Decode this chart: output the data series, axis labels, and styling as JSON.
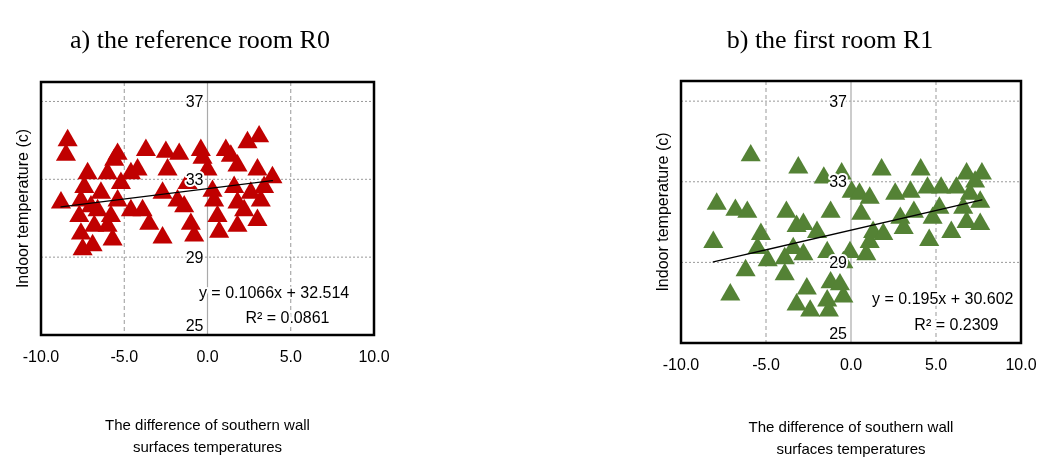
{
  "chart_data": [
    {
      "type": "scatter",
      "title": "a) the reference room R0",
      "xlabel": "The difference of southern wall surfaces temperatures",
      "ylabel": "Indoor temperature (c)",
      "xlim": [
        -10,
        10
      ],
      "ylim": [
        25,
        38
      ],
      "xticks": [
        {
          "value": -10,
          "label": "-10.0"
        },
        {
          "value": -5,
          "label": "-5.0"
        },
        {
          "value": 0,
          "label": "0.0"
        },
        {
          "value": 5,
          "label": "5.0"
        },
        {
          "value": 10,
          "label": "10.0"
        }
      ],
      "yticks": [
        25,
        29,
        33,
        37
      ],
      "grid": true,
      "annotations": [
        "y = 0.1066x + 32.514",
        "R² = 0.0861"
      ],
      "series": [
        {
          "marker": "triangle",
          "color": "#c00000",
          "x": [
            -8.4,
            -8.5,
            -8.8,
            -7.2,
            -7.4,
            -7.6,
            -7.7,
            -7.6,
            -7.5,
            -6.9,
            -6.8,
            -6.6,
            -6.4,
            -6.0,
            -5.6,
            -5.4,
            -5.7,
            -5.8,
            -5.4,
            -5.2,
            -4.6,
            -4.2,
            -4.6,
            -3.9,
            -3.5,
            -3.7,
            -2.7,
            -2.7,
            -2.5,
            -2.4,
            -1.7,
            -1.8,
            -1.4,
            -1.0,
            -0.8,
            -1.2,
            -0.4,
            -0.3,
            0.0,
            0.3,
            0.4,
            0.6,
            0.7,
            1.1,
            1.4,
            1.8,
            1.6,
            1.8,
            1.8,
            2.4,
            3.1,
            3.0,
            3.0,
            3.2,
            3.4,
            3.9,
            2.6,
            2.2,
            -6.0,
            -7.0
          ],
          "values": [
            35.0,
            34.25,
            31.8,
            33.3,
            32.6,
            31.9,
            31.1,
            30.2,
            29.4,
            29.6,
            30.6,
            31.4,
            32.3,
            33.3,
            34.0,
            34.3,
            29.9,
            31.1,
            31.9,
            32.8,
            33.3,
            33.5,
            31.4,
            31.4,
            30.7,
            34.5,
            30.0,
            32.3,
            34.4,
            33.5,
            34.3,
            31.9,
            31.6,
            30.7,
            30.1,
            32.8,
            34.5,
            34.1,
            33.5,
            32.4,
            31.9,
            31.1,
            30.3,
            34.5,
            34.2,
            33.7,
            32.6,
            31.8,
            30.6,
            34.9,
            35.2,
            33.5,
            30.9,
            31.9,
            32.6,
            33.1,
            32.3,
            31.4,
            30.6,
            31.6
          ]
        },
        {
          "type": "line",
          "marker": "none",
          "color": "#000000",
          "x": [
            -8.8,
            3.9
          ],
          "values": [
            31.58,
            32.93
          ]
        }
      ]
    },
    {
      "type": "scatter",
      "title": "b) the first room R1",
      "xlabel": "The difference of southern wall surfaces temperatures",
      "ylabel": "Indoor temperature (c)",
      "xlim": [
        -10,
        10
      ],
      "ylim": [
        25,
        38
      ],
      "xticks": [
        {
          "value": -10,
          "label": "-10.0"
        },
        {
          "value": -5,
          "label": "-5.0"
        },
        {
          "value": 0,
          "label": "0.0"
        },
        {
          "value": 5,
          "label": "5.0"
        },
        {
          "value": 10,
          "label": "10.0"
        }
      ],
      "yticks": [
        25,
        29,
        33,
        37
      ],
      "grid": true,
      "annotations": [
        "y = 0.195x + 30.602",
        "R² = 0.2309"
      ],
      "series": [
        {
          "marker": "triangle",
          "color": "#548235",
          "x": [
            -5.9,
            -3.1,
            -0.55,
            -1.6,
            1.8,
            4.1,
            6.8,
            7.7,
            -7.9,
            -6.8,
            -6.1,
            -8.1,
            -5.3,
            -5.5,
            -4.9,
            -6.2,
            -7.1,
            -3.8,
            -3.2,
            -2.8,
            -3.9,
            -3.9,
            -3.4,
            -2.8,
            -2.0,
            -1.2,
            -1.4,
            -2.6,
            -3.2,
            -2.4,
            -1.4,
            -1.3,
            -1.2,
            -0.45,
            -0.65,
            -0.45,
            -0.06,
            0.04,
            0.5,
            1.1,
            0.6,
            0.9,
            1.1,
            1.3,
            1.9,
            2.6,
            2.9,
            3.1,
            3.5,
            3.7,
            4.5,
            4.6,
            4.8,
            5.3,
            5.2,
            5.9,
            6.2,
            6.6,
            6.8,
            7.3,
            7.6,
            7.6,
            7.0
          ],
          "values": [
            34.3,
            33.7,
            33.4,
            33.2,
            33.6,
            33.6,
            33.4,
            33.4,
            31.9,
            31.6,
            31.5,
            30.0,
            30.4,
            29.7,
            29.1,
            28.6,
            27.4,
            31.5,
            30.8,
            30.9,
            29.2,
            28.4,
            29.7,
            29.4,
            30.5,
            31.5,
            29.5,
            27.7,
            26.9,
            26.6,
            27.1,
            26.6,
            28.0,
            27.3,
            27.9,
            29.0,
            29.5,
            32.5,
            32.4,
            32.2,
            31.4,
            29.4,
            30.0,
            30.5,
            30.4,
            32.4,
            31.2,
            30.7,
            32.5,
            31.5,
            32.7,
            30.1,
            31.2,
            32.7,
            31.7,
            30.5,
            32.7,
            31.7,
            31.0,
            33.0,
            32.0,
            30.9,
            32.4
          ]
        },
        {
          "type": "line",
          "marker": "none",
          "color": "#000000",
          "x": [
            -8.1,
            7.7
          ],
          "values": [
            29.02,
            32.1
          ]
        }
      ]
    }
  ]
}
